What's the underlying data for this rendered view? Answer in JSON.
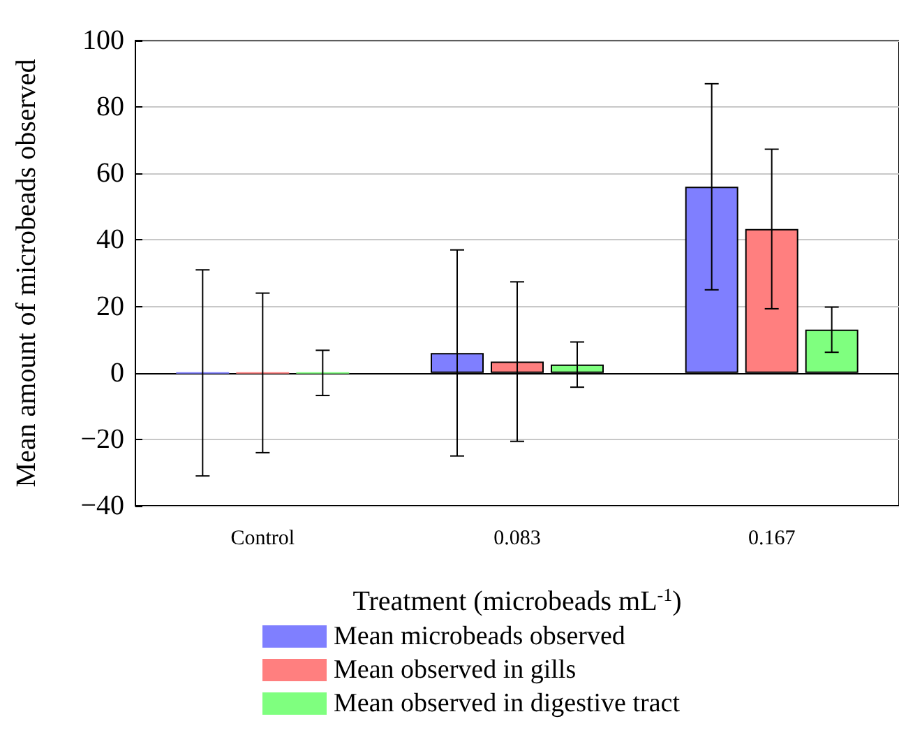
{
  "chart_data": {
    "type": "bar",
    "xlabel": "Treatment (microbeads mL$^{-1}$)",
    "ylabel": "Mean amount of microbeads observed",
    "categories": [
      "Control",
      "0.083",
      "0.167"
    ],
    "series": [
      {
        "name": "Mean microbeads observed",
        "color": "#7f7fff",
        "values": [
          0,
          6,
          56
        ],
        "errors": [
          31,
          31,
          31
        ]
      },
      {
        "name": "Mean observed in gills",
        "color": "#ff7f7f",
        "values": [
          0,
          3.4,
          43.3
        ],
        "errors": [
          24,
          24,
          24
        ]
      },
      {
        "name": "Mean observed in digestive tract",
        "color": "#7fff7f",
        "values": [
          0,
          2.5,
          13
        ],
        "errors": [
          6.8,
          6.8,
          6.8
        ]
      }
    ],
    "ylim": [
      -40,
      100
    ],
    "yticks": [
      -40,
      -20,
      0,
      20,
      40,
      60,
      80,
      100
    ],
    "grid": "y",
    "legend": "bottom"
  }
}
